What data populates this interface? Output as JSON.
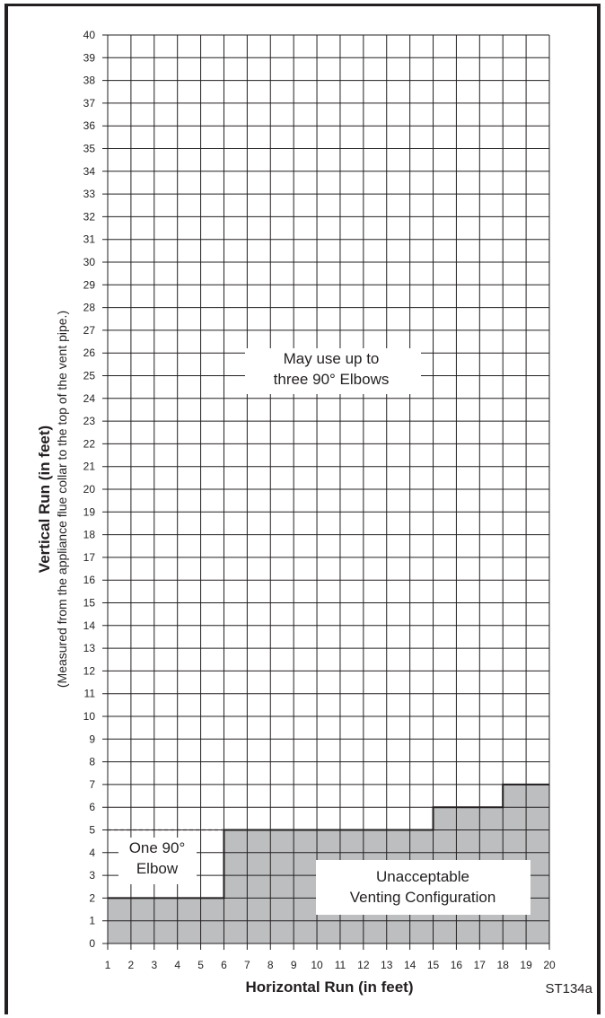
{
  "chart_data": {
    "type": "area",
    "xlabel": "Horizontal Run (in feet)",
    "ylabel": "Vertical Run (in feet)",
    "ylabel_sub": "(Measured from the appliance flue collar to the top of the vent pipe.)",
    "xlim": [
      1,
      20
    ],
    "ylim": [
      0,
      40
    ],
    "x_ticks": [
      1,
      2,
      3,
      4,
      5,
      6,
      7,
      8,
      9,
      10,
      11,
      12,
      13,
      14,
      15,
      16,
      17,
      18,
      19,
      20
    ],
    "y_ticks": [
      0,
      1,
      2,
      3,
      4,
      5,
      6,
      7,
      8,
      9,
      10,
      11,
      12,
      13,
      14,
      15,
      16,
      17,
      18,
      19,
      20,
      21,
      22,
      23,
      24,
      25,
      26,
      27,
      28,
      29,
      30,
      31,
      32,
      33,
      34,
      35,
      36,
      37,
      38,
      39,
      40
    ],
    "grid": true,
    "series": [
      {
        "name": "Unacceptable Venting Configuration",
        "x": [
          1,
          6,
          6,
          15,
          15,
          18,
          18,
          20
        ],
        "y": [
          2,
          2,
          5,
          5,
          6,
          6,
          7,
          7
        ]
      }
    ],
    "one_elbow_limit": {
      "x": [
        1,
        6
      ],
      "y": [
        5,
        5
      ]
    },
    "annotations": [
      {
        "id": "three",
        "lines": [
          "May use up to",
          "three 90° Elbows"
        ]
      },
      {
        "id": "one",
        "lines": [
          "One 90°",
          "Elbow"
        ]
      },
      {
        "id": "unacceptable",
        "lines": [
          "Unacceptable",
          "Venting Configuration"
        ]
      }
    ],
    "code": "ST134a"
  }
}
